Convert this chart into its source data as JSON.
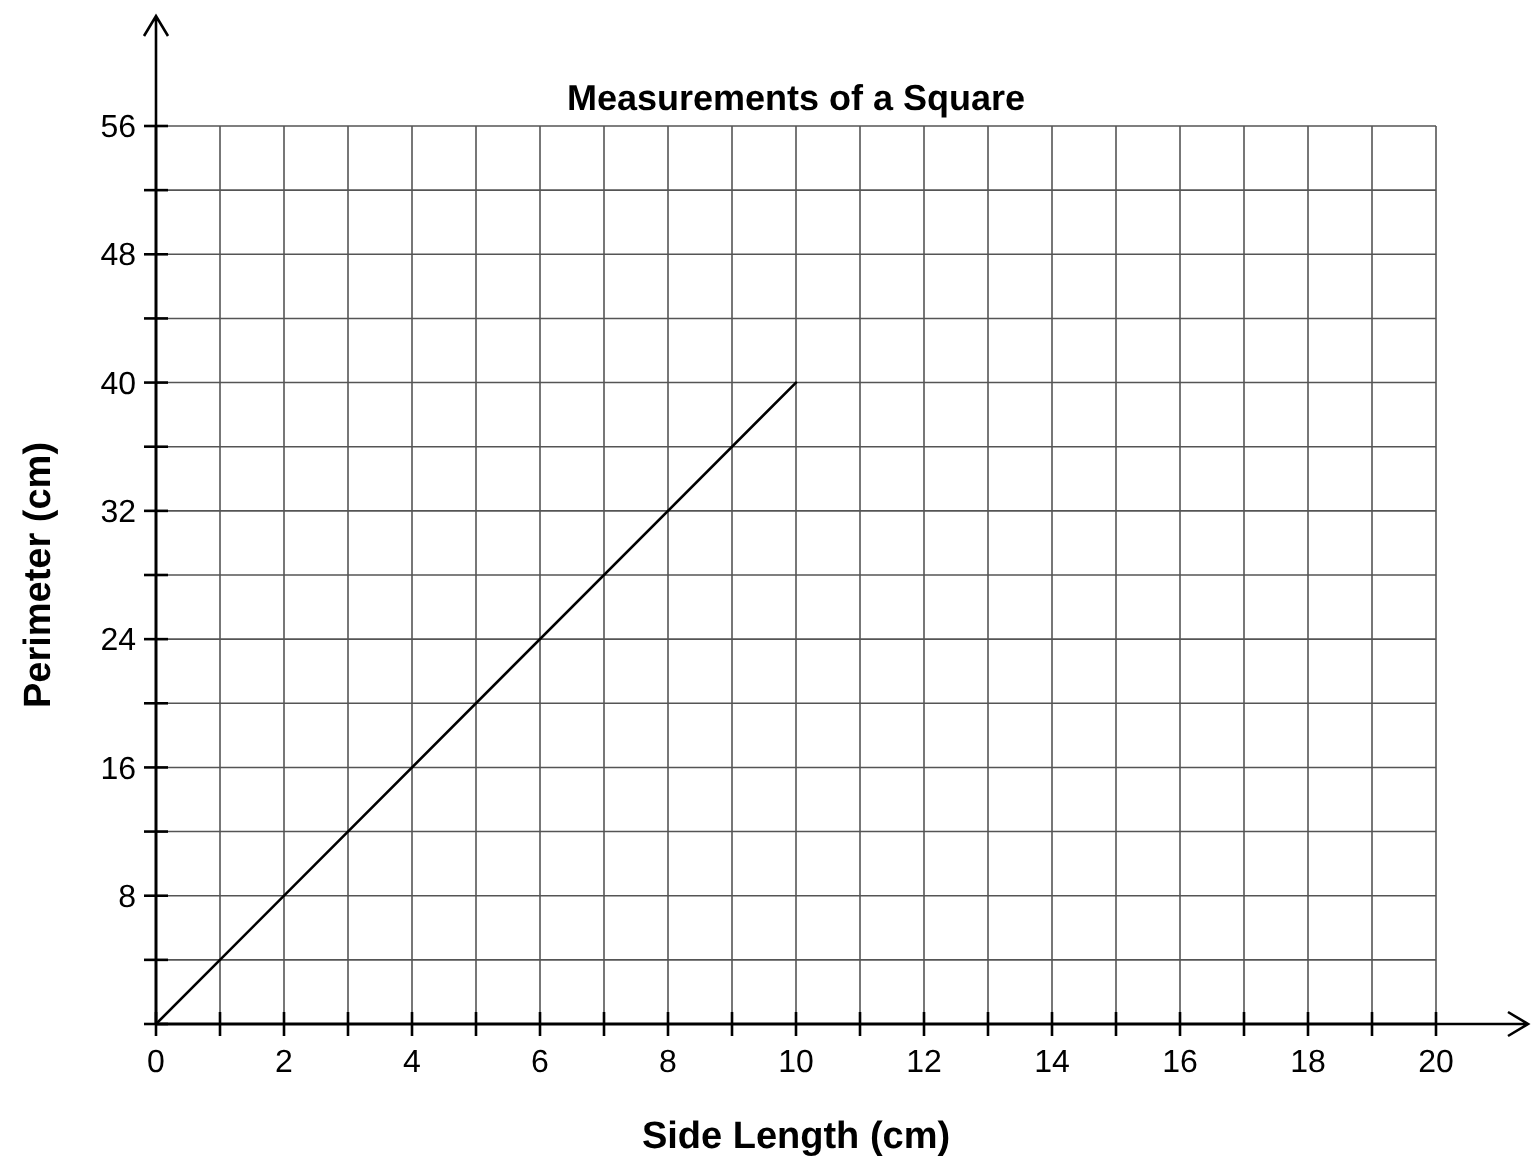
{
  "chart_data": {
    "type": "line",
    "title": "Measurements of a Square",
    "xlabel": "Side Length (cm)",
    "ylabel": "Perimeter (cm)",
    "x": [
      0,
      10
    ],
    "series": [
      {
        "color": "#000000",
        "values": [
          0,
          40
        ]
      }
    ],
    "xlim": [
      0,
      20
    ],
    "ylim": [
      0,
      56
    ],
    "xticks": [
      0,
      {
        "value": 1,
        "label": null
      },
      2,
      {
        "value": 3,
        "label": null
      },
      4,
      {
        "value": 5,
        "label": null
      },
      6,
      {
        "value": 7,
        "label": null
      },
      8,
      {
        "value": 9,
        "label": null
      },
      10,
      {
        "value": 11,
        "label": null
      },
      12,
      {
        "value": 13,
        "label": null
      },
      14,
      {
        "value": 15,
        "label": null
      },
      16,
      {
        "value": 17,
        "label": null
      },
      18,
      {
        "value": 19,
        "label": null
      },
      20
    ],
    "yticks": [
      {
        "value": 0,
        "label": null
      },
      {
        "value": 4,
        "label": null
      },
      8,
      {
        "value": 12,
        "label": null
      },
      16,
      {
        "value": 20,
        "label": null
      },
      24,
      {
        "value": 28,
        "label": null
      },
      32,
      {
        "value": 36,
        "label": null
      },
      40,
      {
        "value": 44,
        "label": null
      },
      48,
      {
        "value": 52,
        "label": null
      },
      56
    ],
    "grid": true,
    "line_style": "solid"
  }
}
